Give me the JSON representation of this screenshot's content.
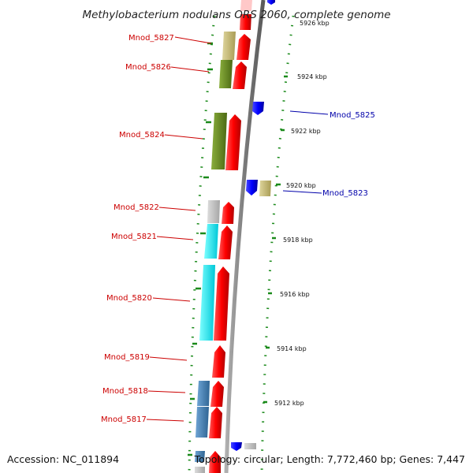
{
  "title": "Methylobacterium nodulans ORS 2060, complete genome",
  "footer": {
    "accession": "Accession: NC_011894",
    "topology": "Topology: circular; Length: 7,772,460 bp; Genes: 7,447"
  },
  "colors": {
    "forward_label": "#cc0000",
    "reverse_label": "#0000aa",
    "cds_forward": "#ff0000",
    "cds_reverse": "#0000ff",
    "backbone": "#888888",
    "tick": "#1a8a1a",
    "cog_khaki": "#c8bc78",
    "cog_olive": "#6b8e23",
    "cog_gray": "#c0c0c0",
    "cog_cyan": "#00ffff",
    "cog_steel": "#4682b4"
  },
  "scale_labels": [
    {
      "kbp": 5912,
      "text": "5912 kbp"
    },
    {
      "kbp": 5914,
      "text": "5914 kbp"
    },
    {
      "kbp": 5916,
      "text": "5916 kbp"
    },
    {
      "kbp": 5918,
      "text": "5918 kbp"
    },
    {
      "kbp": 5920,
      "text": "5920 kbp"
    },
    {
      "kbp": 5922,
      "text": "5922 kbp"
    },
    {
      "kbp": 5924,
      "text": "5924 kbp"
    },
    {
      "kbp": 5926,
      "text": "5926 kbp"
    }
  ],
  "genes": [
    {
      "name": "Mnod_5827",
      "strand": "forward",
      "cog_color": "khaki"
    },
    {
      "name": "Mnod_5826",
      "strand": "forward",
      "cog_color": "olive"
    },
    {
      "name": "Mnod_5825",
      "strand": "reverse"
    },
    {
      "name": "Mnod_5824",
      "strand": "forward",
      "cog_color": "olive"
    },
    {
      "name": "Mnod_5823",
      "strand": "reverse",
      "cog_color": "khaki"
    },
    {
      "name": "Mnod_5822",
      "strand": "forward",
      "cog_color": "gray"
    },
    {
      "name": "Mnod_5821",
      "strand": "forward",
      "cog_color": "cyan"
    },
    {
      "name": "Mnod_5820",
      "strand": "forward",
      "cog_color": "cyan"
    },
    {
      "name": "Mnod_5819",
      "strand": "forward"
    },
    {
      "name": "Mnod_5818",
      "strand": "forward",
      "cog_color": "steelblue"
    },
    {
      "name": "Mnod_5817",
      "strand": "forward",
      "cog_color": "steelblue"
    }
  ]
}
